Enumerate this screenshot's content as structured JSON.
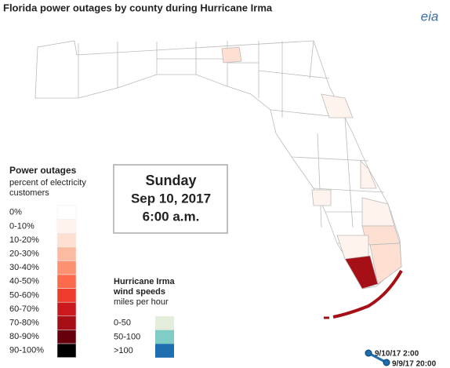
{
  "title": "Florida power outages by county during Hurricane Irma",
  "logo": "eia",
  "date_box": {
    "day": "Sunday",
    "date": "Sep 10, 2017",
    "time": "6:00 a.m."
  },
  "outage_legend": {
    "title": "Power outages",
    "subtitle_lines": [
      "percent of electricity",
      "customers"
    ],
    "items": [
      {
        "label": "0%",
        "color": "#ffffff"
      },
      {
        "label": "0-10%",
        "color": "#fff3ee"
      },
      {
        "label": "10-20%",
        "color": "#fde0d2"
      },
      {
        "label": "20-30%",
        "color": "#fcbba1"
      },
      {
        "label": "30-40%",
        "color": "#fc9272"
      },
      {
        "label": "40-50%",
        "color": "#fb6a4a"
      },
      {
        "label": "50-60%",
        "color": "#ef3b2c"
      },
      {
        "label": "60-70%",
        "color": "#cb181d"
      },
      {
        "label": "70-80%",
        "color": "#a50f15"
      },
      {
        "label": "80-90%",
        "color": "#67000d"
      },
      {
        "label": "90-100%",
        "color": "#000000"
      }
    ]
  },
  "wind_legend": {
    "title_lines": [
      "Hurricane Irma",
      "wind speeds"
    ],
    "subtitle": "miles per hour",
    "items": [
      {
        "label": "0-50",
        "color": "#e5eedd"
      },
      {
        "label": "50-100",
        "color": "#7fcdc4"
      },
      {
        "label": ">100",
        "color": "#1f6eb0"
      }
    ]
  },
  "track_labels": [
    "9/10/17 2:00",
    "9/9/17 20:00"
  ]
}
